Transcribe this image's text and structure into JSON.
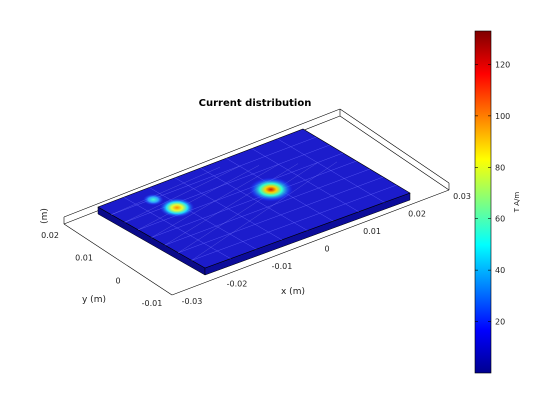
{
  "chart_data": {
    "type": "heatmap",
    "title": "Current distribution",
    "xlabel": "x (m)",
    "ylabel": "y (m)",
    "zlabel": "(m)",
    "x_ticks": [
      "-0.03",
      "-0.02",
      "-0.01",
      "0",
      "0.01",
      "0.02",
      "0.03"
    ],
    "y_ticks": [
      "0.02",
      "0.01",
      "0",
      "-0.01"
    ],
    "colorbar": {
      "label": "T A/m",
      "range": [
        0,
        133
      ],
      "ticks": [
        20,
        40,
        60,
        80,
        100,
        120
      ],
      "colormap": "jet"
    },
    "hotspots": [
      {
        "x": -0.002,
        "y": 0.006,
        "value": 133
      },
      {
        "x": -0.012,
        "y": -0.007,
        "value": 95
      },
      {
        "x": -0.022,
        "y": -0.008,
        "value": 35
      }
    ],
    "background_value": 5,
    "colors": {
      "low": "#00008f",
      "high": "#800000",
      "frame": "#000000"
    }
  }
}
